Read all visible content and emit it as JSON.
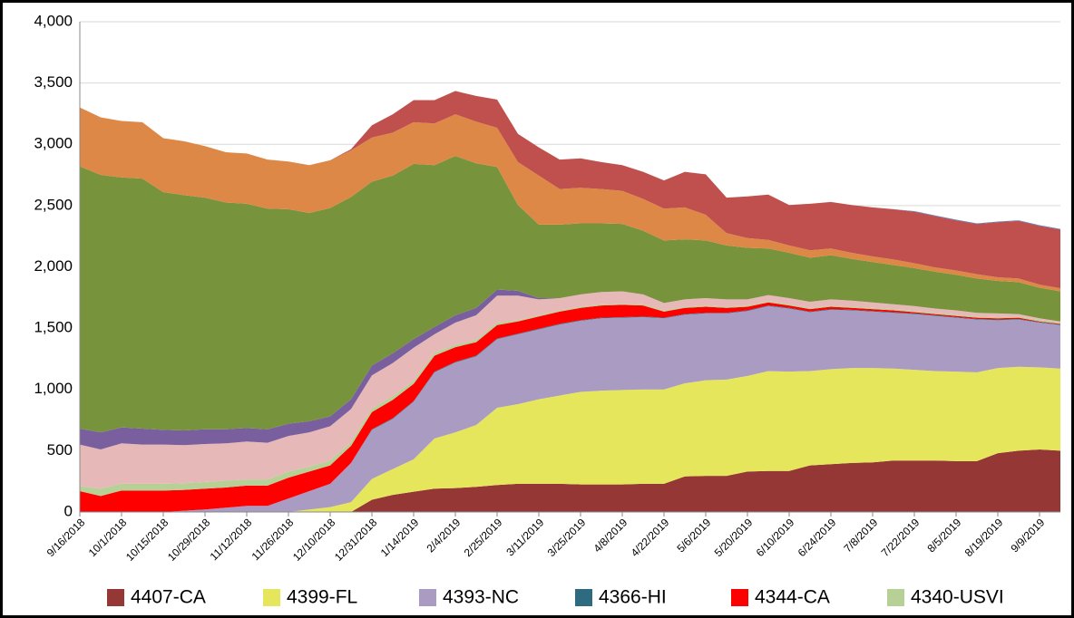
{
  "chart_data": {
    "type": "stacked_area",
    "categories": [
      "9/16/2018",
      null,
      "10/1/2018",
      null,
      "10/15/2018",
      null,
      "10/29/2018",
      null,
      "11/12/2018",
      null,
      "11/26/2018",
      null,
      "12/10/2018",
      null,
      "12/31/2018",
      null,
      "1/14/2019",
      null,
      "2/4/2019",
      null,
      "2/25/2019",
      null,
      "3/11/2019",
      null,
      "3/25/2019",
      null,
      "4/8/2019",
      null,
      "4/22/2019",
      null,
      "5/6/2019",
      null,
      "5/20/2019",
      null,
      "6/10/2019",
      null,
      "6/24/2019",
      null,
      "7/8/2019",
      null,
      "7/22/2019",
      null,
      "8/5/2019",
      null,
      "8/19/2019",
      null,
      "9/9/2019",
      null
    ],
    "series": [
      {
        "name": "4407-CA",
        "color": "#953735",
        "values": [
          0,
          0,
          0,
          0,
          0,
          0,
          0,
          0,
          0,
          0,
          0,
          0,
          0,
          0,
          100,
          140,
          165,
          190,
          195,
          205,
          220,
          230,
          230,
          230,
          225,
          225,
          225,
          230,
          230,
          290,
          295,
          295,
          330,
          335,
          335,
          380,
          390,
          400,
          405,
          420,
          420,
          420,
          415,
          415,
          480,
          500,
          510,
          500
        ]
      },
      {
        "name": "4399-FL",
        "color": "#e6e65c",
        "values": [
          0,
          0,
          0,
          0,
          0,
          0,
          0,
          0,
          0,
          0,
          0,
          20,
          40,
          80,
          170,
          210,
          265,
          410,
          455,
          505,
          630,
          650,
          690,
          720,
          755,
          765,
          770,
          770,
          770,
          760,
          780,
          785,
          780,
          815,
          810,
          770,
          775,
          775,
          770,
          750,
          740,
          730,
          730,
          725,
          695,
          685,
          670,
          670
        ]
      },
      {
        "name": "4393-NC",
        "color": "#a99bc2",
        "values": [
          0,
          0,
          0,
          0,
          0,
          10,
          20,
          35,
          50,
          50,
          110,
          150,
          190,
          320,
          400,
          410,
          470,
          540,
          570,
          560,
          560,
          570,
          570,
          580,
          580,
          590,
          590,
          590,
          580,
          560,
          545,
          540,
          530,
          530,
          515,
          480,
          485,
          470,
          460,
          455,
          455,
          450,
          440,
          430,
          390,
          385,
          365,
          355
        ]
      },
      {
        "name": "4366-HI",
        "color": "#2e6b80",
        "values": [
          0,
          0,
          0,
          0,
          0,
          0,
          0,
          0,
          0,
          0,
          0,
          0,
          0,
          0,
          5,
          5,
          5,
          5,
          5,
          5,
          5,
          5,
          5,
          5,
          5,
          5,
          5,
          5,
          5,
          5,
          5,
          5,
          5,
          5,
          5,
          5,
          5,
          5,
          5,
          5,
          5,
          5,
          5,
          5,
          5,
          5,
          5,
          5
        ]
      },
      {
        "name": "4344-CA",
        "color": "#ff0000",
        "values": [
          170,
          130,
          175,
          175,
          175,
          170,
          170,
          165,
          165,
          165,
          170,
          160,
          150,
          140,
          140,
          150,
          140,
          130,
          120,
          110,
          110,
          100,
          100,
          100,
          100,
          100,
          100,
          90,
          50,
          50,
          50,
          40,
          30,
          25,
          20,
          20,
          20,
          15,
          15,
          15,
          10,
          10,
          10,
          10,
          10,
          10,
          5,
          5
        ]
      },
      {
        "name": "4340-USVI",
        "color": "#b6d096",
        "values": [
          40,
          60,
          55,
          55,
          55,
          55,
          55,
          55,
          50,
          50,
          50,
          40,
          40,
          30,
          30,
          30,
          25,
          25,
          20,
          20,
          20,
          10,
          10,
          10,
          10,
          10,
          10,
          10,
          10,
          10,
          10,
          10,
          10,
          10,
          10,
          10,
          10,
          10,
          10,
          10,
          10,
          10,
          10,
          10,
          10,
          10,
          10,
          10
        ]
      },
      {
        "color": "#e6b9b8",
        "values": [
          340,
          320,
          330,
          320,
          320,
          310,
          310,
          305,
          310,
          300,
          290,
          280,
          280,
          270,
          270,
          270,
          270,
          150,
          180,
          200,
          220,
          200,
          130,
          100,
          100,
          100,
          100,
          80,
          60,
          60,
          60,
          60,
          50,
          50,
          50,
          50,
          50,
          50,
          45,
          40,
          40,
          35,
          35,
          30,
          30,
          20,
          15,
          10
        ]
      },
      {
        "color": "#7a5f9e",
        "values": [
          130,
          140,
          130,
          130,
          120,
          120,
          120,
          115,
          110,
          110,
          100,
          90,
          80,
          80,
          80,
          80,
          70,
          60,
          60,
          60,
          50,
          40,
          10,
          0,
          0,
          0,
          0,
          0,
          0,
          0,
          0,
          0,
          0,
          0,
          0,
          0,
          0,
          0,
          0,
          0,
          0,
          0,
          0,
          0,
          0,
          0,
          0,
          0
        ]
      },
      {
        "color": "#77933c",
        "values": [
          2140,
          2100,
          2040,
          2040,
          1940,
          1920,
          1890,
          1850,
          1830,
          1800,
          1750,
          1700,
          1700,
          1650,
          1500,
          1450,
          1430,
          1320,
          1300,
          1180,
          1000,
          700,
          600,
          600,
          580,
          560,
          550,
          520,
          510,
          490,
          470,
          440,
          420,
          380,
          370,
          360,
          360,
          340,
          330,
          320,
          310,
          300,
          290,
          280,
          265,
          260,
          250,
          245
        ]
      },
      {
        "color": "#dd8846",
        "values": [
          480,
          470,
          460,
          460,
          440,
          440,
          420,
          410,
          410,
          400,
          390,
          390,
          390,
          380,
          360,
          350,
          340,
          340,
          340,
          340,
          320,
          350,
          400,
          290,
          290,
          280,
          270,
          260,
          260,
          260,
          210,
          100,
          80,
          70,
          60,
          60,
          55,
          50,
          45,
          45,
          40,
          35,
          35,
          35,
          30,
          30,
          25,
          25
        ]
      },
      {
        "color": "#c0504d",
        "values": [
          0,
          0,
          0,
          0,
          0,
          0,
          0,
          0,
          0,
          0,
          0,
          0,
          0,
          10,
          100,
          150,
          180,
          190,
          190,
          210,
          230,
          230,
          230,
          240,
          240,
          220,
          210,
          220,
          230,
          290,
          330,
          290,
          340,
          370,
          330,
          380,
          380,
          390,
          400,
          410,
          420,
          420,
          410,
          410,
          450,
          470,
          480,
          480
        ]
      },
      {
        "color": "#4f81bd",
        "values": [
          0,
          0,
          0,
          0,
          0,
          0,
          0,
          0,
          0,
          0,
          0,
          0,
          0,
          0,
          0,
          0,
          0,
          0,
          0,
          0,
          0,
          0,
          0,
          0,
          0,
          0,
          0,
          0,
          0,
          0,
          0,
          0,
          0,
          0,
          0,
          0,
          0,
          0,
          0,
          0,
          5,
          5,
          5,
          5,
          5,
          5,
          5,
          5
        ]
      }
    ],
    "ylim": [
      0,
      4000
    ],
    "yticks": [
      0,
      500,
      {
        "value": 1000,
        "label": "1,000"
      },
      {
        "value": 1500,
        "label": "1,500"
      },
      {
        "value": 2000,
        "label": "2,000"
      },
      {
        "value": 2500,
        "label": "2,500"
      },
      {
        "value": 3000,
        "label": "3,000"
      },
      {
        "value": 3500,
        "label": "3,500"
      },
      {
        "value": 4000,
        "label": "4,000"
      }
    ],
    "grid": true,
    "legend": "bottom"
  }
}
